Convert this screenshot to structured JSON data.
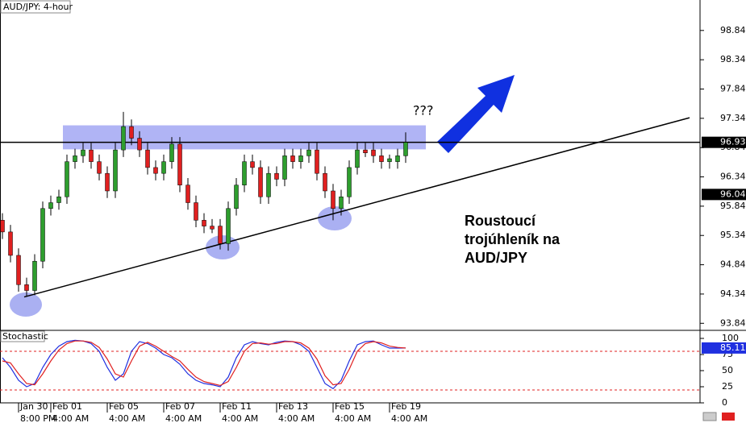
{
  "chart_data": [
    {
      "type": "candlestick",
      "title": "AUD/JPY: 4-hour",
      "categories": [
        null,
        null,
        "Jan 30",
        null,
        null,
        null,
        "Feb 01",
        null,
        null,
        null,
        null,
        null,
        null,
        "Feb 05",
        null,
        null,
        null,
        null,
        null,
        null,
        "Feb 07",
        null,
        null,
        null,
        null,
        null,
        null,
        "Feb 11",
        null,
        null,
        null,
        null,
        null,
        null,
        "Feb 13",
        null,
        null,
        null,
        null,
        null,
        null,
        "Feb 15",
        null,
        null,
        null,
        null,
        null,
        null,
        "Feb 19",
        null,
        null
      ],
      "category_times": [
        null,
        null,
        "8:00 PM",
        null,
        null,
        null,
        "4:00 AM",
        null,
        null,
        null,
        null,
        null,
        null,
        "4:00 AM",
        null,
        null,
        null,
        null,
        null,
        null,
        "4:00 AM",
        null,
        null,
        null,
        null,
        null,
        null,
        "4:00 AM",
        null,
        null,
        null,
        null,
        null,
        null,
        "4:00 AM",
        null,
        null,
        null,
        null,
        null,
        null,
        "4:00 AM",
        null,
        null,
        null,
        null,
        null,
        null,
        "4:00 AM",
        null,
        null
      ],
      "open": [
        95.6,
        95.4,
        95.0,
        94.5,
        94.4,
        94.9,
        95.8,
        95.9,
        96.0,
        96.6,
        96.7,
        96.8,
        96.6,
        96.4,
        96.1,
        96.8,
        97.2,
        97.0,
        96.8,
        96.5,
        96.4,
        96.6,
        96.9,
        96.2,
        95.9,
        95.6,
        95.5,
        95.5,
        95.2,
        95.8,
        96.2,
        96.6,
        96.5,
        96.0,
        96.4,
        96.3,
        96.7,
        96.6,
        96.7,
        96.8,
        96.4,
        96.1,
        95.8,
        96.0,
        96.5,
        96.8,
        96.8,
        96.7,
        96.6,
        96.6,
        96.7
      ],
      "high": [
        95.72,
        95.52,
        95.12,
        94.62,
        95.02,
        95.92,
        96.02,
        96.12,
        96.72,
        96.82,
        96.92,
        96.92,
        96.72,
        96.52,
        96.92,
        97.45,
        97.32,
        97.12,
        96.92,
        96.62,
        96.72,
        97.02,
        97.02,
        96.32,
        96.02,
        95.72,
        95.62,
        95.62,
        95.92,
        96.32,
        96.72,
        96.72,
        96.62,
        96.52,
        96.52,
        96.82,
        96.82,
        96.82,
        96.92,
        96.92,
        96.52,
        96.22,
        96.12,
        96.62,
        96.92,
        96.92,
        96.92,
        96.82,
        96.72,
        96.82,
        97.1
      ],
      "low": [
        95.28,
        94.88,
        94.38,
        94.3,
        94.32,
        94.78,
        95.68,
        95.78,
        95.88,
        96.48,
        96.58,
        96.48,
        96.28,
        95.98,
        95.98,
        96.68,
        96.88,
        96.68,
        96.38,
        96.28,
        96.28,
        96.48,
        96.08,
        95.78,
        95.48,
        95.38,
        95.38,
        95.1,
        95.08,
        95.68,
        96.08,
        96.38,
        95.88,
        95.88,
        96.18,
        96.18,
        96.48,
        96.48,
        96.58,
        96.28,
        95.98,
        95.6,
        95.68,
        95.88,
        96.38,
        96.68,
        96.58,
        96.48,
        96.48,
        96.48,
        96.58
      ],
      "close": [
        95.4,
        95.0,
        94.5,
        94.4,
        94.9,
        95.8,
        95.9,
        96.0,
        96.6,
        96.7,
        96.8,
        96.6,
        96.4,
        96.1,
        96.8,
        97.2,
        97.0,
        96.8,
        96.5,
        96.4,
        96.6,
        96.9,
        96.2,
        95.9,
        95.6,
        95.5,
        95.45,
        95.2,
        95.8,
        96.2,
        96.6,
        96.5,
        96.0,
        96.4,
        96.3,
        96.7,
        96.6,
        96.7,
        96.8,
        96.4,
        96.1,
        95.8,
        96.0,
        96.5,
        96.8,
        96.75,
        96.7,
        96.6,
        96.65,
        96.7,
        96.93
      ],
      "up_color": "#2e9e2e",
      "down_color": "#e02020",
      "ylim": [
        93.72,
        99.36
      ],
      "yticks": [
        93.84,
        94.34,
        94.84,
        95.34,
        95.84,
        96.34,
        96.84,
        97.34,
        97.84,
        98.34,
        98.84
      ],
      "resistance_zone": [
        96.81,
        97.22
      ],
      "trendline": [
        94.29,
        97.35
      ],
      "price_marker": 96.04,
      "annotations": {
        "question": "???",
        "text": [
          "Roustoucí",
          "trojúhleník na",
          "AUD/JPY"
        ]
      }
    },
    {
      "type": "line",
      "title": "Stochastic",
      "series": [
        {
          "color": "#2030e0",
          "values": [
            70,
            55,
            35,
            25,
            30,
            55,
            75,
            88,
            95,
            97,
            96,
            92,
            80,
            55,
            35,
            45,
            80,
            95,
            92,
            85,
            75,
            70,
            60,
            45,
            35,
            30,
            28,
            25,
            40,
            70,
            90,
            95,
            92,
            90,
            94,
            96,
            95,
            90,
            80,
            55,
            30,
            22,
            35,
            65,
            90,
            95,
            96,
            90,
            85,
            85,
            85.11
          ]
        },
        {
          "color": "#e02020",
          "values": [
            65,
            62,
            45,
            30,
            28,
            45,
            65,
            82,
            92,
            96,
            96,
            94,
            86,
            68,
            45,
            40,
            65,
            88,
            94,
            88,
            80,
            72,
            65,
            52,
            40,
            33,
            30,
            27,
            33,
            55,
            80,
            92,
            93,
            91,
            92,
            95,
            95,
            93,
            85,
            68,
            42,
            28,
            30,
            52,
            80,
            92,
            95,
            93,
            88,
            86,
            85
          ]
        }
      ],
      "ylim": [
        0,
        100
      ],
      "yticks": [
        0,
        25,
        50,
        75,
        100
      ],
      "levels": [
        20,
        80
      ]
    }
  ]
}
